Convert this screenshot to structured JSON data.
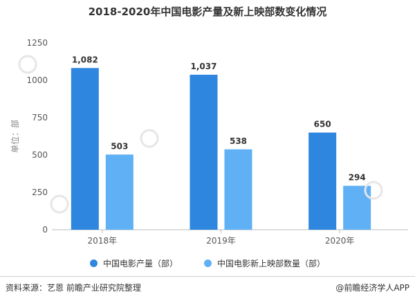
{
  "chart_data": {
    "type": "bar",
    "title": "2018-2020年中国电影产量及新上映部数变化情况",
    "ylabel": "单位：部",
    "xlabel": "",
    "ylim": [
      0,
      1250
    ],
    "yticks": [
      0,
      250,
      500,
      750,
      1000,
      1250
    ],
    "categories": [
      "2018年",
      "2019年",
      "2020年"
    ],
    "grid": false,
    "legend_position": "bottom",
    "series": [
      {
        "name": "中国电影产量（部）",
        "color": "#2e86de",
        "values": [
          1082,
          1037,
          650
        ],
        "labels": [
          "1,082",
          "1,037",
          "650"
        ]
      },
      {
        "name": "中国电影新上映部数量（部）",
        "color": "#5fb0f5",
        "values": [
          503,
          538,
          294
        ],
        "labels": [
          "503",
          "538",
          "294"
        ]
      }
    ]
  },
  "footer": {
    "source": "资料来源：艺恩 前瞻产业研究院整理",
    "brand": "@前瞻经济学人APP"
  }
}
